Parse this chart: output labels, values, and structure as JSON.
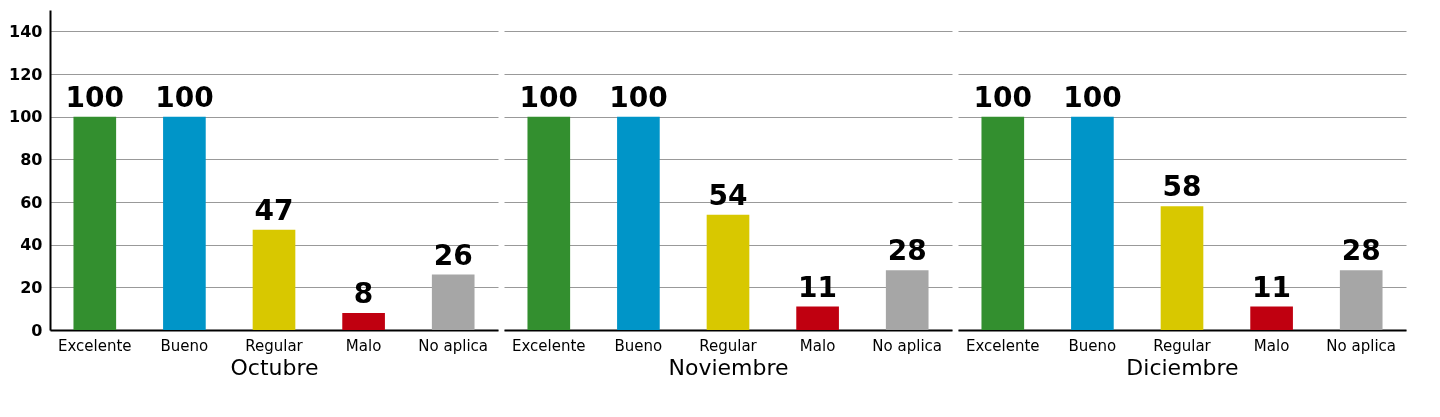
{
  "chart_data": {
    "type": "bar",
    "categories": [
      "Octubre",
      "Noviembre",
      "Diciembre"
    ],
    "series": [
      {
        "name": "Excelente",
        "color": "#338f2f",
        "values": [
          100,
          100,
          100
        ]
      },
      {
        "name": "Bueno",
        "color": "#0095c8",
        "values": [
          100,
          100,
          100
        ]
      },
      {
        "name": "Regular",
        "color": "#d8c800",
        "values": [
          47,
          54,
          58
        ]
      },
      {
        "name": "Malo",
        "color": "#c00010",
        "values": [
          8,
          11,
          11
        ]
      },
      {
        "name": "No aplica",
        "color": "#a6a6a6",
        "values": [
          26,
          28,
          28
        ]
      }
    ],
    "ylim": [
      0,
      150
    ],
    "yticks": [
      0,
      20,
      40,
      60,
      80,
      100,
      120,
      140
    ],
    "grid": "y",
    "data_labels": true
  }
}
